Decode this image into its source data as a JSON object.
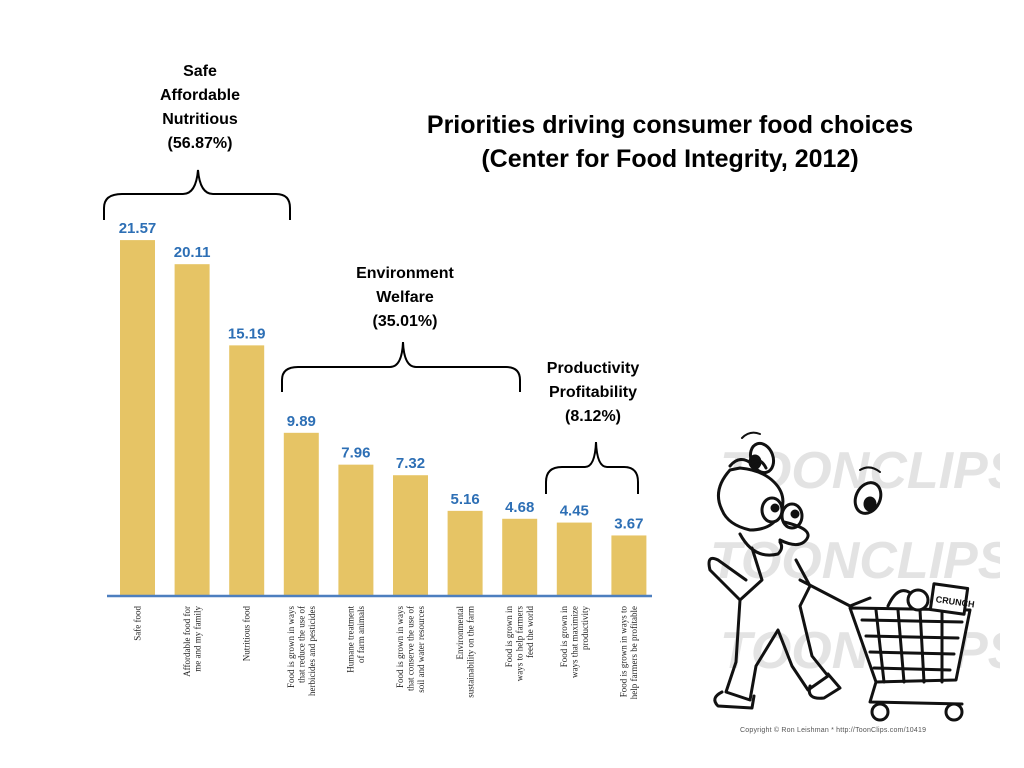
{
  "title": {
    "line1": "Priorities driving consumer food choices",
    "line2": "(Center for Food Integrity, 2012)"
  },
  "groups": [
    {
      "lines": [
        "Safe",
        "Affordable",
        "Nutritious",
        "(56.87%)"
      ]
    },
    {
      "lines": [
        "Environment",
        "Welfare",
        "(35.01%)"
      ]
    },
    {
      "lines": [
        "Productivity",
        "Profitability",
        "(8.12%)"
      ]
    }
  ],
  "chart_data": {
    "type": "bar",
    "categories": [
      [
        "Safe food"
      ],
      [
        "Affordable food for",
        "me and my family"
      ],
      [
        "Nutritious food"
      ],
      [
        "Food is grown in ways",
        "that reduce the use of",
        "herbicides and  pesticides"
      ],
      [
        "Humane treatment",
        "of farm animals"
      ],
      [
        "Food is grown in ways",
        "that conserve the use of",
        "soil and water resources"
      ],
      [
        "Environmental",
        "sustainability on the farm"
      ],
      [
        "Food is grown in",
        "ways to help farmers",
        "feed the world"
      ],
      [
        "Food is grown in",
        "ways that maximize",
        "productivity"
      ],
      [
        "Food is grown in ways to",
        "help farmers be profitable"
      ]
    ],
    "values": [
      21.57,
      20.11,
      15.19,
      9.89,
      7.96,
      7.32,
      5.16,
      4.68,
      4.45,
      3.67
    ],
    "value_labels": [
      "21.57",
      "20.11",
      "15.19",
      "9.89",
      "7.96",
      "7.32",
      "5.16",
      "4.68",
      "4.45",
      "3.67"
    ],
    "ylim": [
      0,
      24
    ],
    "bar_color": "#e6c465",
    "label_color": "#2d6fb5",
    "axis_color": "#4d7fbf"
  },
  "cartoon": {
    "icon": "juggling-shopper-cartoon",
    "watermark": "TOONCLIPS",
    "cart_box_text": "CRUNCH",
    "copyright": "Copyright © Ron Leishman  *  http://ToonClips.com/10419"
  }
}
